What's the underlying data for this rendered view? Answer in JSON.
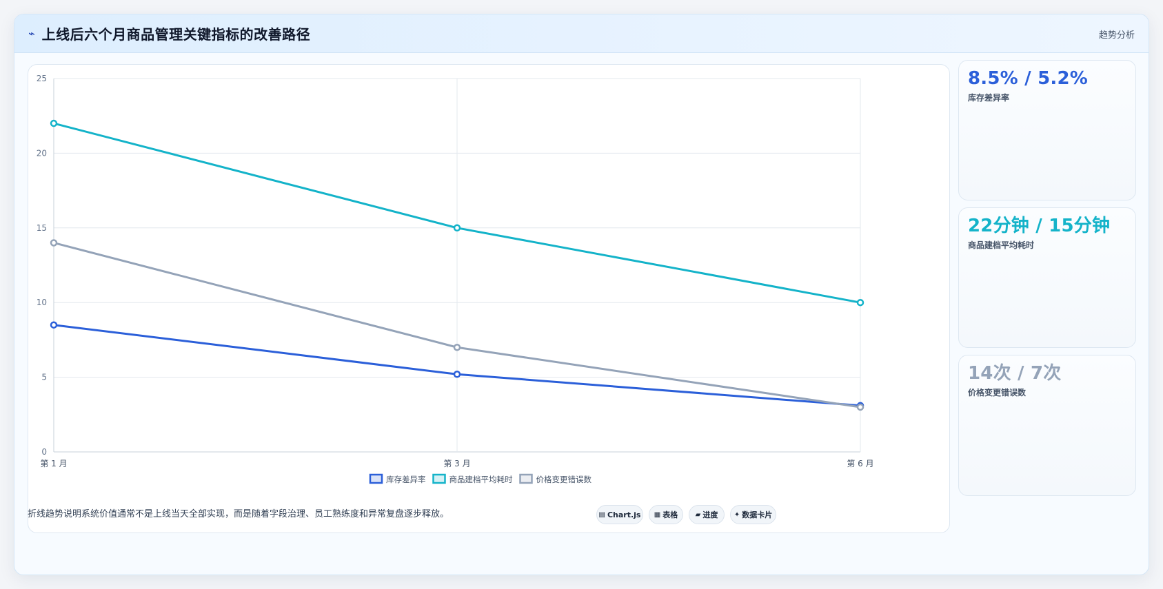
{
  "header": {
    "icon": "chart-line-icon",
    "icon_glyph": "⌁",
    "title": "上线后六个月商品管理关键指标的改善路径",
    "tag": "趋势分析"
  },
  "chart_data": {
    "type": "line",
    "categories": [
      "第 1 月",
      "第 3 月",
      "第 6 月"
    ],
    "series": [
      {
        "name": "库存差异率",
        "values": [
          8.5,
          5.2,
          3.1
        ],
        "color": "#2b5fd9"
      },
      {
        "name": "商品建档平均耗时",
        "values": [
          22,
          15,
          10
        ],
        "color": "#14b3c9"
      },
      {
        "name": "价格变更错误数",
        "values": [
          14,
          7,
          3
        ],
        "color": "#94a3b8"
      }
    ],
    "ylim": [
      0,
      25
    ],
    "yticks": [
      0,
      5,
      10,
      15,
      20,
      25
    ],
    "grid": true,
    "legend_position": "bottom"
  },
  "stats": [
    {
      "value": "8.5% / 5.2%",
      "label": "库存差异率",
      "color": "#2b5fd9"
    },
    {
      "value": "22分钟 / 15分钟",
      "label": "商品建档平均耗时",
      "color": "#14b3c9"
    },
    {
      "value": "14次 / 7次",
      "label": "价格变更错误数",
      "color": "#94a3b8"
    }
  ],
  "footer": {
    "note": "折线趋势说明系统价值通常不是上线当天全部实现，而是随着字段治理、员工熟练度和异常复盘逐步释放。",
    "pills": [
      {
        "icon": "▤",
        "label": "Chart.js"
      },
      {
        "icon": "▦",
        "label": "表格"
      },
      {
        "icon": "▰",
        "label": "进度"
      },
      {
        "icon": "✦",
        "label": "数据卡片"
      }
    ]
  }
}
